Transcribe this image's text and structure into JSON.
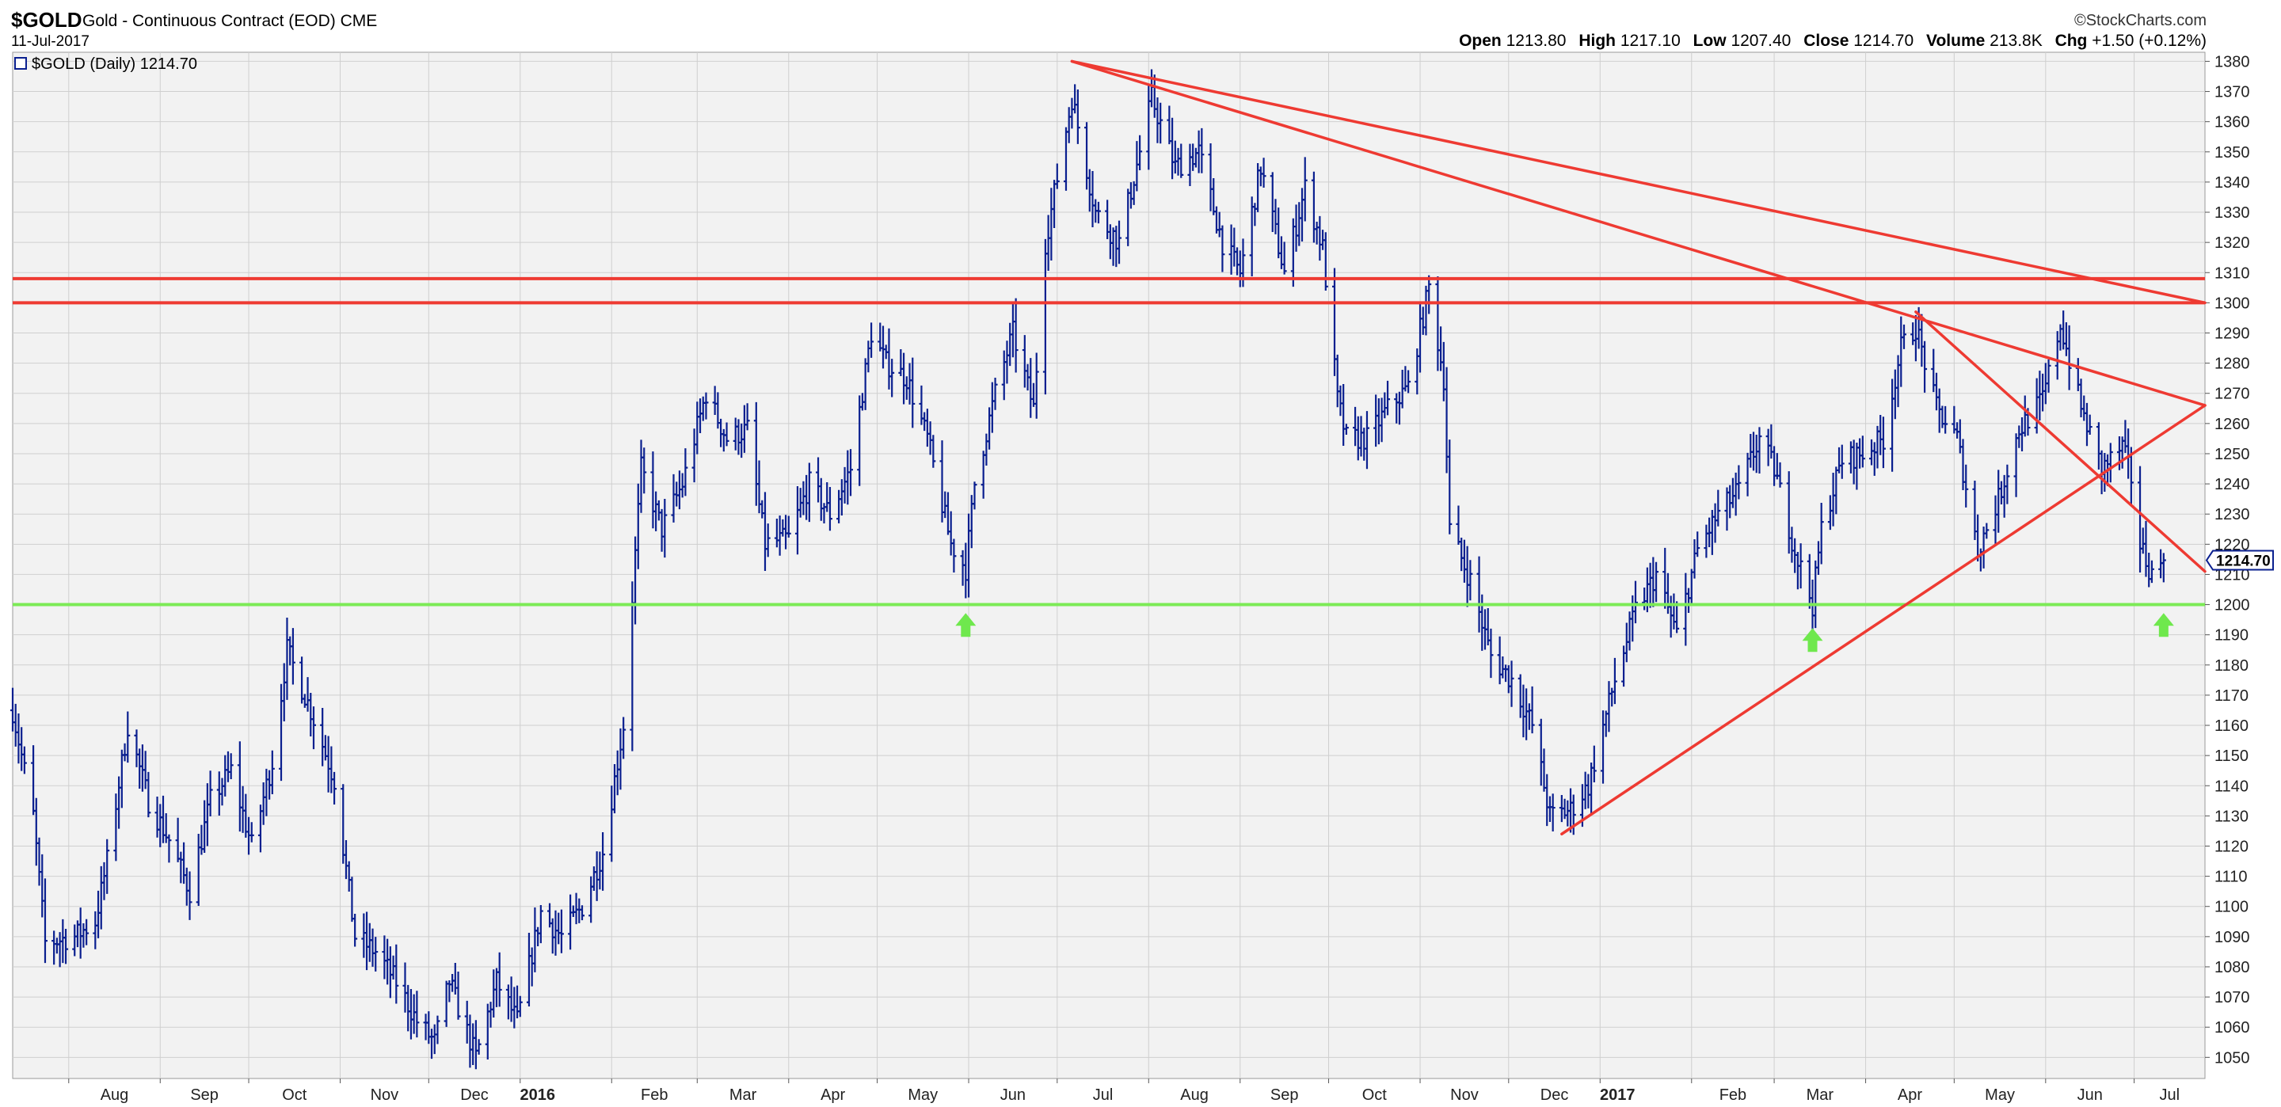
{
  "header": {
    "symbol": "$GOLD",
    "name": "Gold - Continuous Contract (EOD)",
    "exchange": "CME",
    "date": "11-Jul-2017",
    "brand": "©StockCharts.com",
    "open_label": "Open",
    "open": "1213.80",
    "high_label": "High",
    "high": "1217.10",
    "low_label": "Low",
    "low": "1207.40",
    "close_label": "Close",
    "close": "1214.70",
    "volume_label": "Volume",
    "volume": "213.8K",
    "chg_label": "Chg",
    "chg": "+1.50 (+0.12%)"
  },
  "legend": {
    "label": "$GOLD (Daily) 1214.70"
  },
  "colors": {
    "price": "#0a1f8f",
    "trendline": "#ee3a32",
    "support": "#7cea56",
    "arrow": "#6fe84d",
    "grid": "#cfcfcf",
    "plot_bg": "#f2f2f2"
  },
  "chart_data": {
    "type": "ohlc",
    "series_name": "$GOLD (Daily)",
    "last_value": "1214.70",
    "ylim": [
      1043,
      1383
    ],
    "y_ticks": [
      1050,
      1060,
      1070,
      1080,
      1090,
      1100,
      1110,
      1120,
      1130,
      1140,
      1150,
      1160,
      1170,
      1180,
      1190,
      1200,
      1210,
      1220,
      1230,
      1240,
      1250,
      1260,
      1270,
      1280,
      1290,
      1300,
      1310,
      1320,
      1330,
      1340,
      1350,
      1360,
      1370,
      1380
    ],
    "x_range": [
      "2015-07-13",
      "2017-07-25"
    ],
    "x_ticks": [
      {
        "label": "Aug",
        "date": "2015-08-01",
        "bold": false
      },
      {
        "label": "Sep",
        "date": "2015-09-01",
        "bold": false
      },
      {
        "label": "Oct",
        "date": "2015-10-01",
        "bold": false
      },
      {
        "label": "Nov",
        "date": "2015-11-01",
        "bold": false
      },
      {
        "label": "Dec",
        "date": "2015-12-01",
        "bold": false
      },
      {
        "label": "2016",
        "date": "2016-01-01",
        "bold": true
      },
      {
        "label": "Feb",
        "date": "2016-02-01",
        "bold": false
      },
      {
        "label": "Mar",
        "date": "2016-03-01",
        "bold": false
      },
      {
        "label": "Apr",
        "date": "2016-04-01",
        "bold": false
      },
      {
        "label": "May",
        "date": "2016-05-01",
        "bold": false
      },
      {
        "label": "Jun",
        "date": "2016-06-01",
        "bold": false
      },
      {
        "label": "Jul",
        "date": "2016-07-01",
        "bold": false
      },
      {
        "label": "Aug",
        "date": "2016-08-01",
        "bold": false
      },
      {
        "label": "Sep",
        "date": "2016-09-01",
        "bold": false
      },
      {
        "label": "Oct",
        "date": "2016-10-01",
        "bold": false
      },
      {
        "label": "Nov",
        "date": "2016-11-01",
        "bold": false
      },
      {
        "label": "Dec",
        "date": "2016-12-01",
        "bold": false
      },
      {
        "label": "2017",
        "date": "2017-01-01",
        "bold": true
      },
      {
        "label": "Feb",
        "date": "2017-02-01",
        "bold": false
      },
      {
        "label": "Mar",
        "date": "2017-03-01",
        "bold": false
      },
      {
        "label": "Apr",
        "date": "2017-04-01",
        "bold": false
      },
      {
        "label": "May",
        "date": "2017-05-01",
        "bold": false
      },
      {
        "label": "Jun",
        "date": "2017-06-01",
        "bold": false
      },
      {
        "label": "Jul",
        "date": "2017-07-01",
        "bold": false
      }
    ],
    "price_path": [
      [
        "2015-07-13",
        1165
      ],
      [
        "2015-07-20",
        1130
      ],
      [
        "2015-07-24",
        1088
      ],
      [
        "2015-08-03",
        1090
      ],
      [
        "2015-08-10",
        1095
      ],
      [
        "2015-08-14",
        1115
      ],
      [
        "2015-08-21",
        1160
      ],
      [
        "2015-08-28",
        1135
      ],
      [
        "2015-09-04",
        1122
      ],
      [
        "2015-09-11",
        1105
      ],
      [
        "2015-09-18",
        1135
      ],
      [
        "2015-09-25",
        1145
      ],
      [
        "2015-10-02",
        1120
      ],
      [
        "2015-10-09",
        1148
      ],
      [
        "2015-10-14",
        1185
      ],
      [
        "2015-10-22",
        1165
      ],
      [
        "2015-10-30",
        1142
      ],
      [
        "2015-11-06",
        1090
      ],
      [
        "2015-11-13",
        1085
      ],
      [
        "2015-11-20",
        1075
      ],
      [
        "2015-11-27",
        1062
      ],
      [
        "2015-12-03",
        1055
      ],
      [
        "2015-12-08",
        1075
      ],
      [
        "2015-12-17",
        1050
      ],
      [
        "2015-12-24",
        1075
      ],
      [
        "2015-12-31",
        1062
      ],
      [
        "2016-01-08",
        1098
      ],
      [
        "2016-01-15",
        1090
      ],
      [
        "2016-01-22",
        1100
      ],
      [
        "2016-01-29",
        1118
      ],
      [
        "2016-02-05",
        1160
      ],
      [
        "2016-02-11",
        1245
      ],
      [
        "2016-02-18",
        1225
      ],
      [
        "2016-02-25",
        1240
      ],
      [
        "2016-03-04",
        1270
      ],
      [
        "2016-03-11",
        1255
      ],
      [
        "2016-03-18",
        1258
      ],
      [
        "2016-03-24",
        1220
      ],
      [
        "2016-04-01",
        1222
      ],
      [
        "2016-04-08",
        1240
      ],
      [
        "2016-04-15",
        1230
      ],
      [
        "2016-04-22",
        1245
      ],
      [
        "2016-04-29",
        1290
      ],
      [
        "2016-05-04",
        1280
      ],
      [
        "2016-05-11",
        1275
      ],
      [
        "2016-05-18",
        1255
      ],
      [
        "2016-05-26",
        1220
      ],
      [
        "2016-05-31",
        1212
      ],
      [
        "2016-06-03",
        1240
      ],
      [
        "2016-06-10",
        1270
      ],
      [
        "2016-06-16",
        1290
      ],
      [
        "2016-06-23",
        1265
      ],
      [
        "2016-06-27",
        1320
      ],
      [
        "2016-07-06",
        1368
      ],
      [
        "2016-07-14",
        1330
      ],
      [
        "2016-07-22",
        1320
      ],
      [
        "2016-07-29",
        1350
      ],
      [
        "2016-08-02",
        1368
      ],
      [
        "2016-08-10",
        1345
      ],
      [
        "2016-08-18",
        1350
      ],
      [
        "2016-08-26",
        1320
      ],
      [
        "2016-09-01",
        1310
      ],
      [
        "2016-09-08",
        1345
      ],
      [
        "2016-09-16",
        1310
      ],
      [
        "2016-09-23",
        1338
      ],
      [
        "2016-09-29",
        1318
      ],
      [
        "2016-10-04",
        1268
      ],
      [
        "2016-10-07",
        1255
      ],
      [
        "2016-10-14",
        1255
      ],
      [
        "2016-10-21",
        1265
      ],
      [
        "2016-10-28",
        1272
      ],
      [
        "2016-11-04",
        1305
      ],
      [
        "2016-11-09",
        1275
      ],
      [
        "2016-11-11",
        1225
      ],
      [
        "2016-11-18",
        1208
      ],
      [
        "2016-11-25",
        1183
      ],
      [
        "2016-12-02",
        1175
      ],
      [
        "2016-12-09",
        1160
      ],
      [
        "2016-12-15",
        1130
      ],
      [
        "2016-12-22",
        1132
      ],
      [
        "2016-12-28",
        1140
      ],
      [
        "2017-01-06",
        1175
      ],
      [
        "2017-01-13",
        1198
      ],
      [
        "2017-01-20",
        1210
      ],
      [
        "2017-01-27",
        1190
      ],
      [
        "2017-02-03",
        1218
      ],
      [
        "2017-02-10",
        1230
      ],
      [
        "2017-02-17",
        1238
      ],
      [
        "2017-02-24",
        1255
      ],
      [
        "2017-03-01",
        1245
      ],
      [
        "2017-03-08",
        1218
      ],
      [
        "2017-03-14",
        1200
      ],
      [
        "2017-03-17",
        1225
      ],
      [
        "2017-03-24",
        1248
      ],
      [
        "2017-03-31",
        1250
      ],
      [
        "2017-04-07",
        1255
      ],
      [
        "2017-04-13",
        1285
      ],
      [
        "2017-04-18",
        1292
      ],
      [
        "2017-04-25",
        1265
      ],
      [
        "2017-05-02",
        1255
      ],
      [
        "2017-05-09",
        1218
      ],
      [
        "2017-05-16",
        1235
      ],
      [
        "2017-05-23",
        1258
      ],
      [
        "2017-05-31",
        1268
      ],
      [
        "2017-06-06",
        1293
      ],
      [
        "2017-06-13",
        1265
      ],
      [
        "2017-06-20",
        1245
      ],
      [
        "2017-06-27",
        1252
      ],
      [
        "2017-06-30",
        1242
      ],
      [
        "2017-07-03",
        1220
      ],
      [
        "2017-07-07",
        1210
      ],
      [
        "2017-07-11",
        1214.7
      ]
    ],
    "annotations": {
      "horizontal_lines": [
        {
          "value": 1308,
          "color": "red"
        },
        {
          "value": 1300,
          "color": "red"
        },
        {
          "value": 1200,
          "color": "green"
        }
      ],
      "trendlines": [
        {
          "from": [
            "2016-07-06",
            1380
          ],
          "to": [
            "2017-07-25",
            1300
          ]
        },
        {
          "from": [
            "2016-07-06",
            1380
          ],
          "to": [
            "2017-07-25",
            1266
          ]
        },
        {
          "from": [
            "2016-12-19",
            1124
          ],
          "to": [
            "2017-07-25",
            1266
          ]
        },
        {
          "from": [
            "2017-04-18",
            1297
          ],
          "to": [
            "2017-07-25",
            1211
          ]
        }
      ],
      "up_arrows": [
        {
          "date": "2016-05-31",
          "value": 1193
        },
        {
          "date": "2017-03-14",
          "value": 1188
        },
        {
          "date": "2017-07-11",
          "value": 1193
        }
      ]
    }
  }
}
